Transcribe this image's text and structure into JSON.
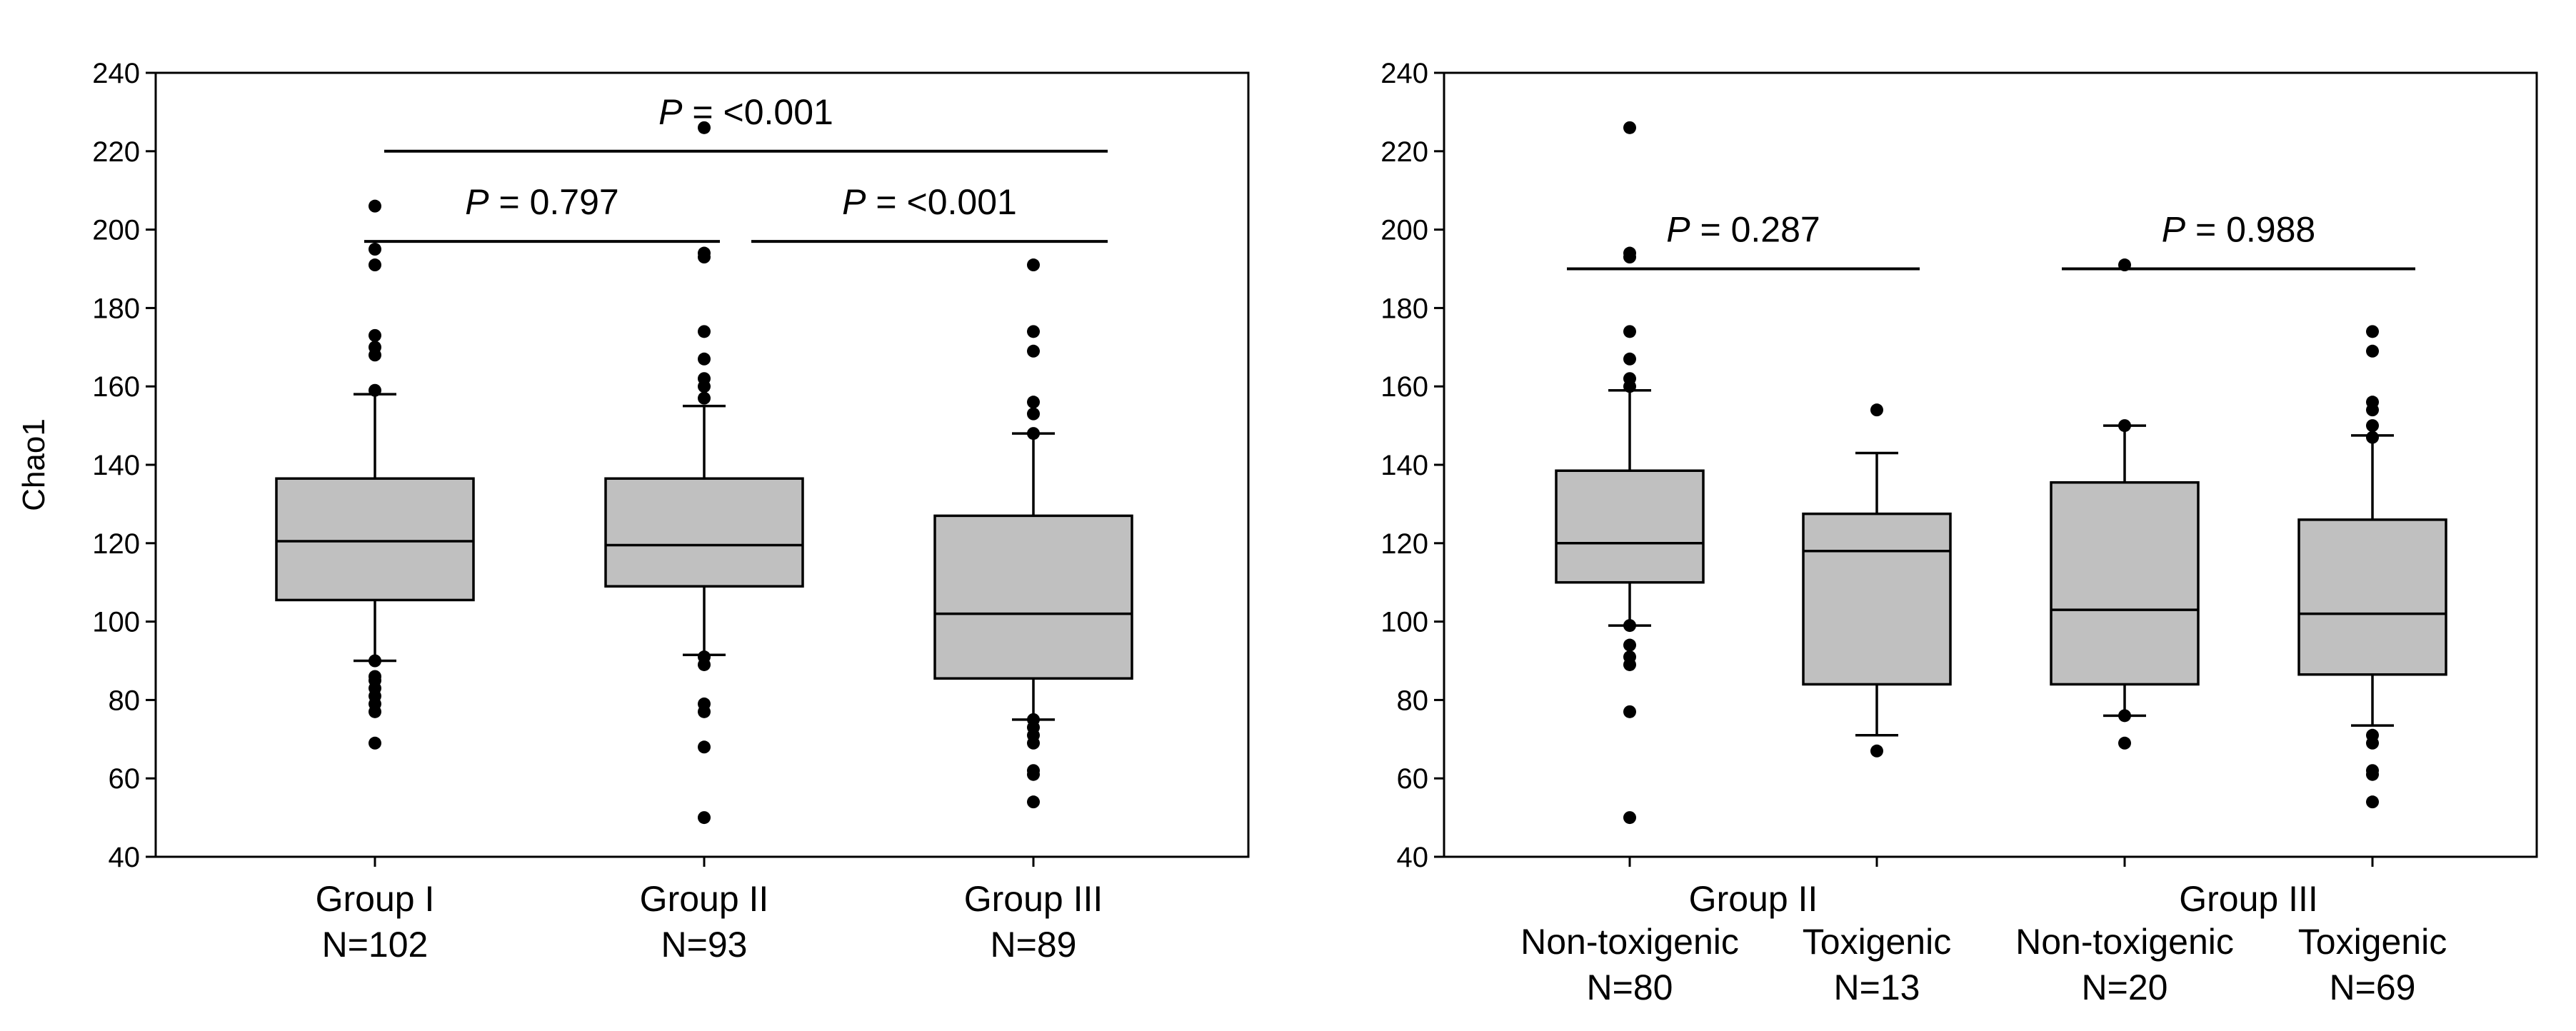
{
  "chart_data": [
    {
      "type": "box",
      "panel": "left",
      "ylabel": "Chao1",
      "ylim": [
        40,
        240
      ],
      "yticks": [
        40,
        60,
        80,
        100,
        120,
        140,
        160,
        180,
        200,
        220,
        240
      ],
      "categories": [
        {
          "name": "Group I",
          "sub": "",
          "n": "N=102",
          "min": 90,
          "q1": 105.5,
          "median": 120.5,
          "q3": 136.5,
          "max": 158,
          "outliers": [
            69,
            77,
            79,
            81,
            83,
            85,
            86,
            90,
            159,
            168,
            170,
            173,
            191,
            195,
            206
          ]
        },
        {
          "name": "Group II",
          "sub": "",
          "n": "N=93",
          "min": 91.5,
          "q1": 109,
          "median": 119.5,
          "q3": 136.5,
          "max": 155,
          "outliers": [
            50,
            68,
            77,
            79,
            89,
            91,
            157,
            160,
            162,
            167,
            174,
            193,
            194
          ]
        },
        {
          "name": "Group III",
          "sub": "",
          "n": "N=89",
          "min": 75,
          "q1": 85.5,
          "median": 102,
          "q3": 127,
          "max": 148,
          "outliers": [
            54,
            61,
            62,
            69,
            71,
            73,
            75,
            148,
            153,
            156,
            169,
            174,
            191
          ]
        }
      ],
      "comparisons": [
        {
          "p_prefix": "P",
          "p_text": " = 0.797",
          "from": 0,
          "to": 1,
          "y": 197
        },
        {
          "p_prefix": "P",
          "p_text": " = <0.001",
          "from": 1,
          "to": 2,
          "y": 197
        },
        {
          "p_prefix": "P",
          "p_text": " = <0.001",
          "from": 0,
          "to": 2,
          "y": 220
        }
      ],
      "extra_outliers": [
        {
          "cat": 1,
          "value": 226
        }
      ]
    },
    {
      "type": "box",
      "panel": "right",
      "ylabel": "",
      "ylim": [
        40,
        240
      ],
      "yticks": [
        40,
        60,
        80,
        100,
        120,
        140,
        160,
        180,
        200,
        220,
        240
      ],
      "groups": [
        {
          "label": "Group II",
          "span": [
            0,
            1
          ]
        },
        {
          "label": "Group III",
          "span": [
            2,
            3
          ]
        }
      ],
      "categories": [
        {
          "name": "",
          "sub": "Non-toxigenic",
          "n": "N=80",
          "min": 99,
          "q1": 110,
          "median": 120,
          "q3": 138.5,
          "max": 159,
          "outliers": [
            50,
            77,
            89,
            91,
            94,
            99,
            160,
            162,
            167,
            174,
            193,
            194,
            226
          ]
        },
        {
          "name": "",
          "sub": "Toxigenic",
          "n": "N=13",
          "min": 71,
          "q1": 84,
          "median": 118,
          "q3": 127.5,
          "max": 143,
          "outliers": [
            67,
            154
          ]
        },
        {
          "name": "",
          "sub": "Non-toxigenic",
          "n": "N=20",
          "min": 76,
          "q1": 84,
          "median": 103,
          "q3": 135.5,
          "max": 150,
          "outliers": [
            69,
            76,
            150
          ]
        },
        {
          "name": "",
          "sub": "Toxigenic",
          "n": "N=69",
          "min": 73.5,
          "q1": 86.5,
          "median": 102,
          "q3": 126,
          "max": 147.5,
          "outliers": [
            54,
            61,
            62,
            69,
            71,
            147,
            150,
            154,
            156,
            169,
            174
          ]
        }
      ],
      "comparisons": [
        {
          "p_prefix": "P",
          "p_text": " = 0.287",
          "from": 0,
          "to": 1,
          "y": 190
        },
        {
          "p_prefix": "P",
          "p_text": " = 0.988",
          "from": 2,
          "to": 3,
          "y": 190
        }
      ],
      "extra_outliers": [
        {
          "cat": 2,
          "value": 191
        }
      ]
    }
  ]
}
